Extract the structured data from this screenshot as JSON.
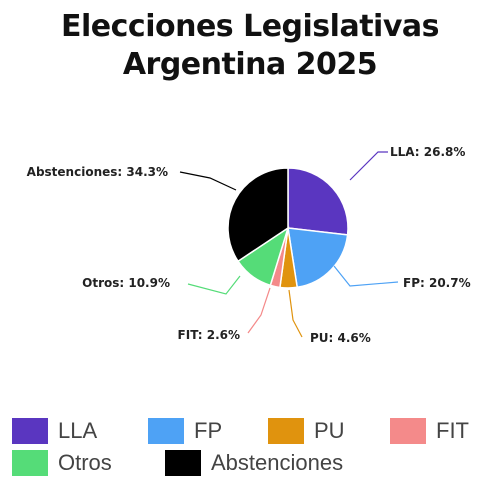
{
  "title_line1": "Elecciones Legislativas",
  "title_line2": "Argentina 2025",
  "chart_data": {
    "type": "pie",
    "title": "Elecciones Legislativas Argentina 2025",
    "categories": [
      "LLA",
      "FP",
      "PU",
      "FIT",
      "Otros",
      "Abstenciones"
    ],
    "values": [
      26.8,
      20.7,
      4.6,
      2.6,
      10.9,
      34.3
    ],
    "colors": [
      "#5a36c0",
      "#4ea2f5",
      "#e0930e",
      "#f48a8a",
      "#55dc78",
      "#000000"
    ],
    "data_labels": [
      "LLA: 26.8%",
      "FP: 20.7%",
      "PU: 4.6%",
      "FIT: 2.6%",
      "Otros: 10.9%",
      "Abstenciones: 34.3%"
    ],
    "legend_position": "bottom"
  },
  "legend": [
    {
      "label": "LLA",
      "color": "#5a36c0"
    },
    {
      "label": "FP",
      "color": "#4ea2f5"
    },
    {
      "label": "PU",
      "color": "#e0930e"
    },
    {
      "label": "FIT",
      "color": "#f48a8a"
    },
    {
      "label": "Otros",
      "color": "#55dc78"
    },
    {
      "label": "Abstenciones",
      "color": "#000000"
    }
  ]
}
